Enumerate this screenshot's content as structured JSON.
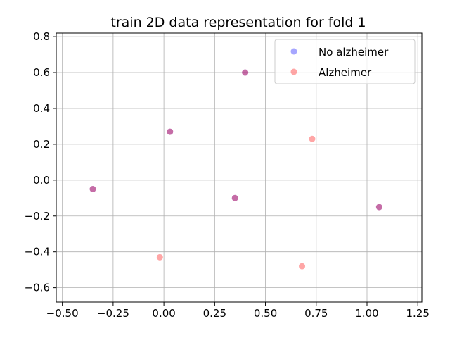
{
  "chart_data": {
    "type": "scatter",
    "title": "train 2D data representation for fold 1",
    "xlabel": "",
    "ylabel": "",
    "xlim": [
      -0.53,
      1.27
    ],
    "ylim": [
      -0.68,
      0.82
    ],
    "x_ticks": [
      -0.5,
      -0.25,
      0.0,
      0.25,
      0.5,
      0.75,
      1.0,
      1.25
    ],
    "x_tick_labels": [
      "−0.50",
      "−0.25",
      "0.00",
      "0.25",
      "0.50",
      "0.75",
      "1.00",
      "1.25"
    ],
    "y_ticks": [
      -0.6,
      -0.4,
      -0.2,
      0.0,
      0.2,
      0.4,
      0.6,
      0.8
    ],
    "y_tick_labels": [
      "−0.6",
      "−0.4",
      "−0.2",
      "0.0",
      "0.2",
      "0.4",
      "0.6",
      "0.8"
    ],
    "grid": true,
    "legend_position": "top-right",
    "series": [
      {
        "name": "No alzheimer",
        "color": "#0000ff",
        "points": [
          {
            "x": 0.4,
            "y": 0.6
          },
          {
            "x": 0.03,
            "y": 0.27
          },
          {
            "x": -0.35,
            "y": -0.05
          },
          {
            "x": 0.35,
            "y": -0.1
          },
          {
            "x": 1.06,
            "y": -0.15
          }
        ]
      },
      {
        "name": "Alzheimer",
        "color": "#ff0000",
        "points": [
          {
            "x": 0.4,
            "y": 0.6
          },
          {
            "x": 0.03,
            "y": 0.27
          },
          {
            "x": 0.73,
            "y": 0.23
          },
          {
            "x": -0.35,
            "y": -0.05
          },
          {
            "x": 0.35,
            "y": -0.1
          },
          {
            "x": 1.06,
            "y": -0.15
          },
          {
            "x": -0.02,
            "y": -0.43
          },
          {
            "x": 0.68,
            "y": -0.48
          }
        ]
      }
    ]
  }
}
